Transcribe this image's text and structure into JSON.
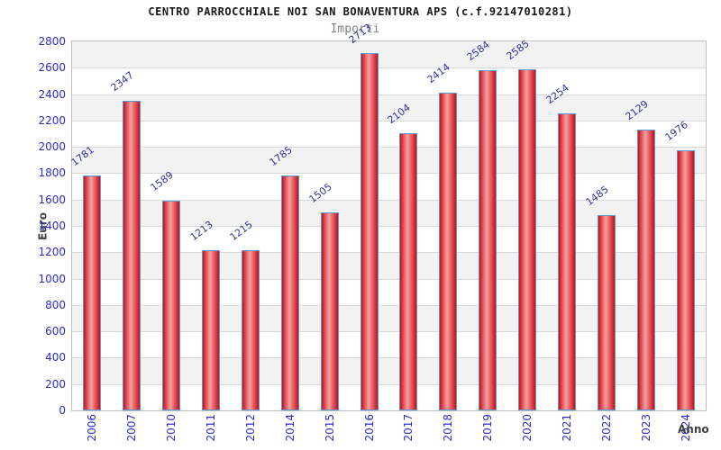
{
  "chart_data": {
    "type": "bar",
    "title": "CENTRO PARROCCHIALE NOI SAN BONAVENTURA APS (c.f.92147010281)",
    "subtitle": "Importi",
    "xlabel": "Anno",
    "ylabel": "Euro",
    "categories": [
      "2006",
      "2007",
      "2010",
      "2011",
      "2012",
      "2014",
      "2015",
      "2016",
      "2017",
      "2018",
      "2019",
      "2020",
      "2021",
      "2022",
      "2023",
      "2024"
    ],
    "values": [
      1781,
      2347,
      1589,
      1213,
      1215,
      1785,
      1505,
      2713,
      2104,
      2414,
      2584,
      2585,
      2254,
      1485,
      2129,
      1976
    ],
    "ylim": [
      0,
      2800
    ],
    "ytick_step": 200,
    "yticks": [
      0,
      200,
      400,
      600,
      800,
      1000,
      1200,
      1400,
      1600,
      1800,
      2000,
      2200,
      2400,
      2600,
      2800
    ],
    "grid": "horizontal",
    "legend": "none",
    "bar_value_labels_rotated": true,
    "xtick_labels_rotated": true,
    "colors": {
      "bar_edge_dark": "#c50f18",
      "bar_mid": "#e4555b",
      "bar_center_light": "#f4a1a1",
      "bar_border": "#5b9bd5",
      "tick_label": "#2b2bcf",
      "value_label": "#333399",
      "band_gray": "#f2f2f2",
      "band_white": "#ffffff",
      "gridline": "#d9d9d9",
      "plot_border": "#c0c0c0",
      "title_color": "#191919",
      "subtitle_color": "#828282",
      "axis_title_color": "#404040"
    }
  }
}
